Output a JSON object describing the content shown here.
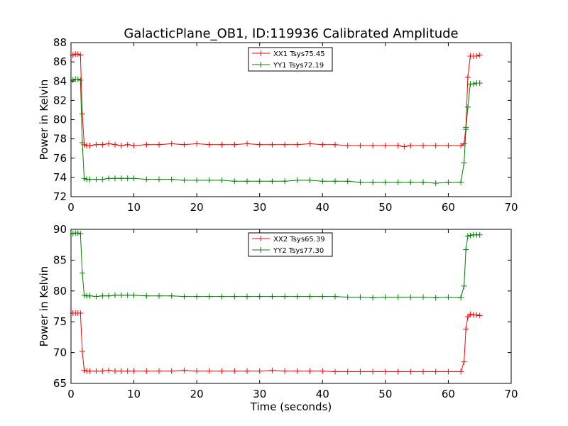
{
  "figure": {
    "title": "GalacticPlane_OB1, ID:119936 Calibrated Amplitude",
    "xlabel": "Time (seconds)"
  },
  "chart_data": [
    {
      "type": "line",
      "title": "GalacticPlane_OB1, ID:119936 Calibrated Amplitude",
      "xlabel": "",
      "ylabel": "Power in Kelvin",
      "xlim": [
        0,
        70
      ],
      "ylim": [
        72,
        88
      ],
      "xticks": [
        0,
        10,
        20,
        30,
        40,
        50,
        60,
        70
      ],
      "yticks": [
        72,
        74,
        76,
        78,
        80,
        82,
        84,
        86,
        88
      ],
      "legend": "top-center",
      "grid": false,
      "marker": "+",
      "series": [
        {
          "name": "XX1 Tsys75.45",
          "color": "#ff0000",
          "x": [
            0.3,
            0.7,
            1.1,
            1.5,
            1.8,
            2.1,
            2.5,
            3.0,
            4.0,
            5.0,
            6.0,
            7.0,
            8.0,
            9.0,
            10.0,
            12.0,
            14.0,
            16.0,
            18.0,
            20.0,
            22.0,
            24.0,
            26.0,
            28.0,
            30.0,
            32.0,
            34.0,
            36.0,
            38.0,
            40.0,
            42.0,
            44.0,
            46.0,
            48.0,
            50.0,
            52.0,
            53.0,
            54.0,
            56.0,
            58.0,
            60.0,
            62.0,
            62.5,
            62.8,
            63.1,
            63.5,
            64.0,
            64.5,
            65.0
          ],
          "y": [
            86.7,
            86.8,
            86.8,
            86.7,
            80.6,
            77.4,
            77.3,
            77.3,
            77.4,
            77.4,
            77.5,
            77.4,
            77.3,
            77.4,
            77.3,
            77.4,
            77.4,
            77.5,
            77.4,
            77.5,
            77.4,
            77.4,
            77.4,
            77.5,
            77.4,
            77.4,
            77.4,
            77.4,
            77.5,
            77.4,
            77.4,
            77.3,
            77.3,
            77.3,
            77.3,
            77.3,
            77.2,
            77.3,
            77.3,
            77.3,
            77.3,
            77.3,
            77.5,
            79.2,
            84.4,
            86.6,
            86.6,
            86.6,
            86.7
          ]
        },
        {
          "name": "YY1 Tsys72.19",
          "color": "#008000",
          "x": [
            0.3,
            0.7,
            1.1,
            1.5,
            1.8,
            2.1,
            2.5,
            3.0,
            4.0,
            5.0,
            6.0,
            7.0,
            8.0,
            9.0,
            10.0,
            12.0,
            14.0,
            16.0,
            18.0,
            20.0,
            22.0,
            24.0,
            26.0,
            28.0,
            30.0,
            32.0,
            34.0,
            36.0,
            38.0,
            40.0,
            42.0,
            44.0,
            46.0,
            48.0,
            50.0,
            52.0,
            54.0,
            56.0,
            58.0,
            60.0,
            62.0,
            62.5,
            62.8,
            63.1,
            63.5,
            64.0,
            64.5,
            65.0
          ],
          "y": [
            84.1,
            84.2,
            84.2,
            84.1,
            77.6,
            73.9,
            73.8,
            73.8,
            73.8,
            73.8,
            73.9,
            73.9,
            73.9,
            73.9,
            73.9,
            73.8,
            73.8,
            73.8,
            73.7,
            73.7,
            73.7,
            73.7,
            73.6,
            73.6,
            73.6,
            73.6,
            73.6,
            73.7,
            73.7,
            73.6,
            73.6,
            73.6,
            73.5,
            73.5,
            73.5,
            73.5,
            73.5,
            73.5,
            73.4,
            73.5,
            73.5,
            75.5,
            79.0,
            81.3,
            83.7,
            83.7,
            83.8,
            83.8
          ]
        }
      ]
    },
    {
      "type": "line",
      "title": "",
      "xlabel": "Time (seconds)",
      "ylabel": "Power in Kelvin",
      "xlim": [
        0,
        70
      ],
      "ylim": [
        65,
        90
      ],
      "xticks": [
        0,
        10,
        20,
        30,
        40,
        50,
        60,
        70
      ],
      "yticks": [
        65,
        70,
        75,
        80,
        85,
        90
      ],
      "legend": "top-center",
      "grid": false,
      "marker": "+",
      "series": [
        {
          "name": "XX2 Tsys65.39",
          "color": "#ff0000",
          "x": [
            0.3,
            0.7,
            1.1,
            1.5,
            1.8,
            2.1,
            2.5,
            3.0,
            4.0,
            5.0,
            6.0,
            7.0,
            8.0,
            9.0,
            10.0,
            12.0,
            14.0,
            16.0,
            18.0,
            20.0,
            22.0,
            24.0,
            26.0,
            28.0,
            30.0,
            32.0,
            34.0,
            36.0,
            38.0,
            40.0,
            42.0,
            44.0,
            46.0,
            48.0,
            50.0,
            52.0,
            54.0,
            56.0,
            58.0,
            60.0,
            62.0,
            62.5,
            62.8,
            63.1,
            63.5,
            64.0,
            64.5,
            65.0
          ],
          "y": [
            76.4,
            76.4,
            76.4,
            76.4,
            70.2,
            67.1,
            67.0,
            67.0,
            67.0,
            67.0,
            67.1,
            67.0,
            67.0,
            67.0,
            67.0,
            67.0,
            67.0,
            67.0,
            67.1,
            67.0,
            67.0,
            67.0,
            67.0,
            67.0,
            67.0,
            67.1,
            67.0,
            67.0,
            67.0,
            67.0,
            66.9,
            66.9,
            66.9,
            66.9,
            66.9,
            66.9,
            66.9,
            66.9,
            66.9,
            66.9,
            66.9,
            68.5,
            73.8,
            75.8,
            76.2,
            76.1,
            76.1,
            76.0
          ]
        },
        {
          "name": "YY2 Tsys77.30",
          "color": "#008000",
          "x": [
            0.3,
            0.7,
            1.1,
            1.5,
            1.8,
            2.1,
            2.5,
            3.0,
            4.0,
            5.0,
            6.0,
            7.0,
            8.0,
            9.0,
            10.0,
            12.0,
            14.0,
            16.0,
            18.0,
            20.0,
            22.0,
            24.0,
            26.0,
            28.0,
            30.0,
            32.0,
            34.0,
            36.0,
            38.0,
            40.0,
            42.0,
            44.0,
            46.0,
            48.0,
            50.0,
            52.0,
            54.0,
            56.0,
            58.0,
            60.0,
            62.0,
            62.5,
            62.8,
            63.1,
            63.5,
            64.0,
            64.5,
            65.0
          ],
          "y": [
            89.3,
            89.4,
            89.4,
            89.3,
            82.9,
            79.3,
            79.2,
            79.2,
            79.1,
            79.2,
            79.2,
            79.3,
            79.3,
            79.3,
            79.3,
            79.2,
            79.2,
            79.2,
            79.1,
            79.1,
            79.1,
            79.1,
            79.1,
            79.1,
            79.1,
            79.1,
            79.1,
            79.1,
            79.1,
            79.1,
            79.1,
            79.0,
            79.0,
            78.9,
            79.0,
            79.0,
            79.0,
            79.0,
            78.9,
            79.0,
            78.9,
            80.8,
            86.7,
            88.9,
            89.0,
            89.1,
            89.1,
            89.1
          ]
        }
      ]
    }
  ]
}
